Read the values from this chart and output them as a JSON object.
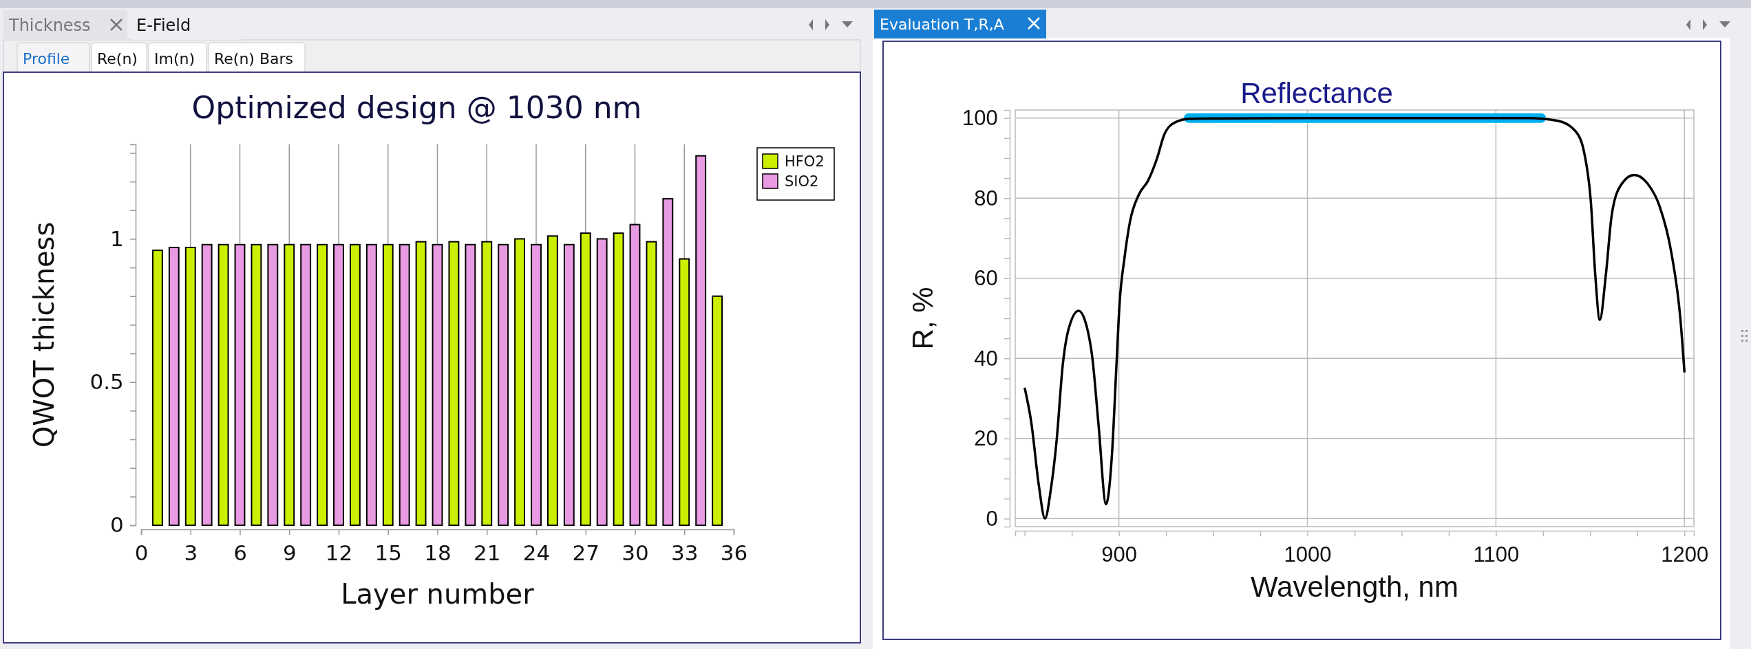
{
  "chart_data": [
    {
      "type": "bar",
      "title": "Optimized design @ 1030 nm",
      "xlabel": "Layer number",
      "ylabel": "QWOT thickness",
      "annotations": [
        "Thickness",
        "E-Field",
        "Profile",
        "Re(n)",
        "Im(n)",
        "Re(n) Bars"
      ],
      "series": [
        {
          "name": "HFO2",
          "color": "#ccee00",
          "x": [
            1,
            3,
            5,
            7,
            9,
            11,
            13,
            15,
            17,
            19,
            21,
            23,
            25,
            27,
            29,
            31,
            33,
            35
          ],
          "values": [
            0.96,
            0.97,
            0.98,
            0.98,
            0.98,
            0.98,
            0.98,
            0.98,
            0.99,
            0.99,
            0.99,
            1.0,
            1.01,
            1.02,
            1.02,
            0.99,
            0.93,
            0.8
          ]
        },
        {
          "name": "SIO2",
          "color": "#e89ae2",
          "x": [
            2,
            4,
            6,
            8,
            10,
            12,
            14,
            16,
            18,
            20,
            22,
            24,
            26,
            28,
            30,
            32,
            34
          ],
          "values": [
            0.97,
            0.98,
            0.98,
            0.98,
            0.98,
            0.98,
            0.98,
            0.98,
            0.98,
            0.98,
            0.98,
            0.98,
            0.98,
            1.0,
            1.05,
            1.14,
            1.29
          ]
        }
      ],
      "xlim": [
        0,
        36
      ],
      "xticks": [
        0,
        3,
        6,
        9,
        12,
        15,
        18,
        21,
        24,
        27,
        30,
        33,
        36
      ],
      "ylim": [
        0,
        1.33
      ],
      "yticks": [
        0,
        {
          "value": 0.1,
          "label": null
        },
        {
          "value": 0.2,
          "label": null
        },
        {
          "value": 0.3,
          "label": null
        },
        {
          "value": 0.4,
          "label": null
        },
        {
          "value": 0.5,
          "label": "0.5"
        },
        {
          "value": 0.6,
          "label": null
        },
        {
          "value": 0.7,
          "label": null
        },
        {
          "value": 0.8,
          "label": null
        },
        {
          "value": 0.9,
          "label": null
        },
        1,
        {
          "value": 1.1,
          "label": null
        },
        {
          "value": 1.2,
          "label": null
        },
        {
          "value": 1.3,
          "label": null
        }
      ],
      "grid": "x",
      "legend": "top right"
    },
    {
      "type": "line",
      "xlabel": "Wavelength, nm",
      "ylabel": "R, %",
      "annotations": [
        "Evaluation T,R,A"
      ],
      "series": [
        {
          "name": "Reflectance",
          "color": "#00b0f0",
          "x": [
            937,
            1124
          ],
          "values": [
            100,
            100
          ]
        },
        {
          "color": "#000000",
          "x": [
            850,
            853.5,
            857.5,
            860.8,
            863.8,
            867,
            870.2,
            873.3,
            878.6,
            882.9,
            886,
            889.2,
            893.2,
            896.3,
            898.7,
            900.3,
            903,
            905.9,
            910.6,
            915.4,
            920.2,
            924.1,
            929.7,
            937.6,
            950,
            1000,
            1050,
            1100,
            1117,
            1132.9,
            1142.4,
            1147.1,
            1150.3,
            1152.7,
            1155.1,
            1158.3,
            1161.4,
            1166.2,
            1173.3,
            1180.5,
            1186.8,
            1193.2,
            1197.9,
            1200
          ],
          "values": [
            32.7,
            24.1,
            8.4,
            0,
            7,
            19.7,
            38.3,
            47.3,
            51.9,
            48,
            39.8,
            23.4,
            3.6,
            15.9,
            38.3,
            53.3,
            65.2,
            74.2,
            80.9,
            84.3,
            89.9,
            95.9,
            98.9,
            99.8,
            99.9,
            100,
            100,
            100,
            100,
            99.3,
            96.6,
            90.7,
            79.4,
            60.8,
            49.6,
            60.8,
            75.7,
            83.2,
            85.8,
            83.6,
            78,
            66,
            49.6,
            36.5
          ]
        }
      ],
      "xlim": [
        845,
        1205
      ],
      "xticks": [
        {
          "value": 850,
          "label": null
        },
        {
          "value": 875,
          "label": null
        },
        900,
        {
          "value": 925,
          "label": null
        },
        {
          "value": 950,
          "label": null
        },
        {
          "value": 975,
          "label": null
        },
        1000,
        {
          "value": 1025,
          "label": null
        },
        {
          "value": 1050,
          "label": null
        },
        {
          "value": 1075,
          "label": null
        },
        1100,
        {
          "value": 1125,
          "label": null
        },
        {
          "value": 1150,
          "label": null
        },
        {
          "value": 1175,
          "label": null
        },
        1200
      ],
      "ylim": [
        -2,
        102
      ],
      "yticks": [
        0,
        {
          "value": 5,
          "label": null
        },
        {
          "value": 10,
          "label": null
        },
        {
          "value": 15,
          "label": null
        },
        20,
        {
          "value": 25,
          "label": null
        },
        {
          "value": 30,
          "label": null
        },
        {
          "value": 35,
          "label": null
        },
        40,
        {
          "value": 45,
          "label": null
        },
        {
          "value": 50,
          "label": null
        },
        {
          "value": 55,
          "label": null
        },
        60,
        {
          "value": 65,
          "label": null
        },
        {
          "value": 70,
          "label": null
        },
        {
          "value": 75,
          "label": null
        },
        80,
        {
          "value": 85,
          "label": null
        },
        {
          "value": 90,
          "label": null
        },
        {
          "value": 95,
          "label": null
        },
        100
      ],
      "grid": true
    }
  ]
}
